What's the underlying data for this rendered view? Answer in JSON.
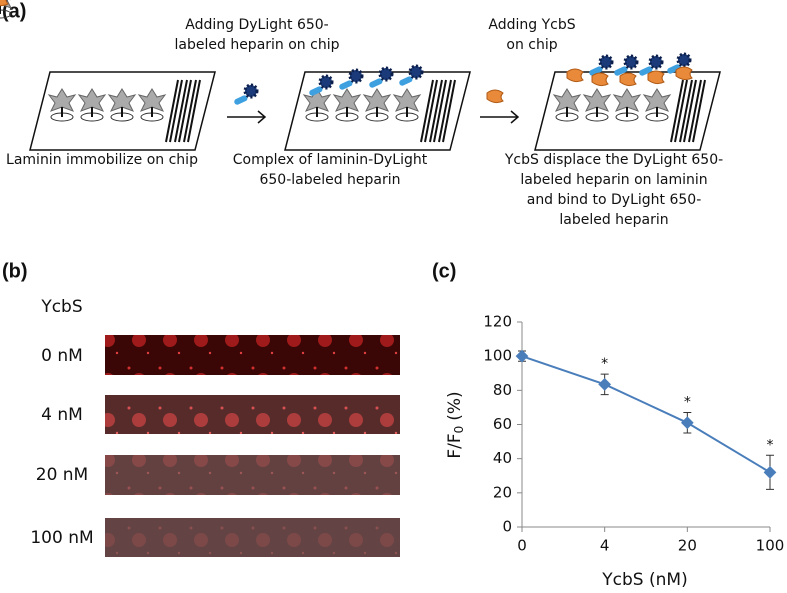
{
  "panel_a": {
    "label": "(a)",
    "steps": [
      {
        "text": [
          "Adding DyLight 650-",
          "labeled heparin on chip"
        ]
      },
      {
        "text": [
          "Adding YcbS",
          "on chip"
        ]
      }
    ],
    "chips": [
      {
        "caption": [
          "Laminin immobilize on chip"
        ]
      },
      {
        "caption": [
          "Complex of laminin-DyLight",
          "650-labeled heparin"
        ]
      },
      {
        "caption": [
          "YcbS displace the DyLight 650-",
          "labeled heparin on laminin",
          "and bind to DyLight 650-",
          "labeled heparin"
        ]
      }
    ]
  },
  "panel_b": {
    "label": "(b)",
    "header": "YcbS",
    "rows": [
      "0 nM",
      "4 nM",
      "20 nM",
      "100 nM"
    ]
  },
  "chart_data": {
    "type": "line",
    "panel_label": "(c)",
    "x_label": "YcbS (nM)",
    "y_label": "F/F",
    "y_label_subscript": "0",
    "y_label_unit": "(%)",
    "categories": [
      "0",
      "4",
      "20",
      "100"
    ],
    "values": [
      100,
      83.5,
      61,
      32
    ],
    "errors": [
      3,
      6,
      6,
      10
    ],
    "markers": [
      null,
      "*",
      "*",
      "*"
    ],
    "color": "#4a7ebb",
    "ylim": [
      0,
      120
    ],
    "yticks": [
      0,
      20,
      40,
      60,
      80,
      100,
      120
    ]
  }
}
